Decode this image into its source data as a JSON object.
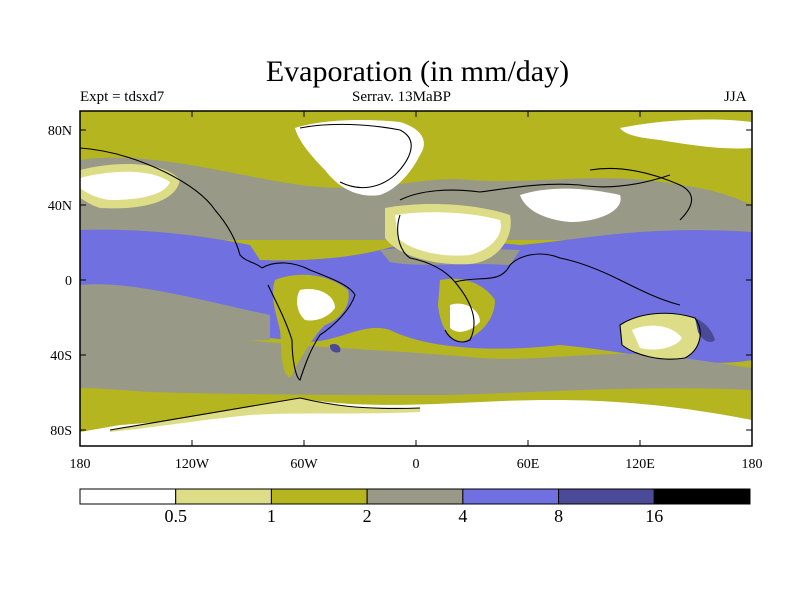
{
  "title": "Evaporation (in mm/day)",
  "subtitle_left": "Expt = tdsxd7",
  "subtitle_center": "Serrav.  13MaBP",
  "subtitle_right": "JJA",
  "lat_ticks": [
    "80N",
    "40N",
    "0",
    "40S",
    "80S"
  ],
  "lon_ticks": [
    "180",
    "120W",
    "60W",
    "0",
    "60E",
    "120E",
    "180"
  ],
  "colorbar": {
    "labels": [
      "0.5",
      "1",
      "2",
      "4",
      "8",
      "16"
    ],
    "colors": [
      "#ffffff",
      "#dddd88",
      "#b5b520",
      "#999988",
      "#7070e0",
      "#4a4a99",
      "#000000"
    ]
  },
  "colors": {
    "bg_land": "#b5b520",
    "ocean_high": "#7070e0",
    "ocean_mid": "#999988",
    "arid": "#ffffff",
    "semi_arid": "#dddd88",
    "very_high": "#4a4a99"
  }
}
